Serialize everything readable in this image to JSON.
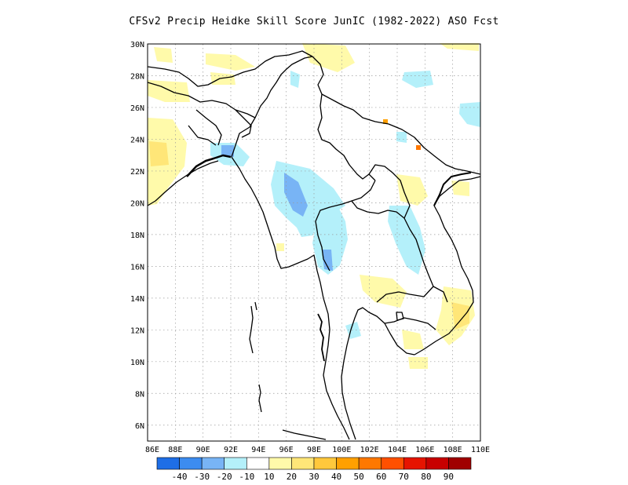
{
  "title": "CFSv2 Precip Heidke Skill Score JunIC (1982-2022) ASO Fcst",
  "map": {
    "lon_range": [
      86,
      110
    ],
    "lat_range": [
      5,
      30
    ],
    "lon_ticks": [
      "86E",
      "88E",
      "90E",
      "92E",
      "94E",
      "96E",
      "98E",
      "100E",
      "102E",
      "104E",
      "106E",
      "108E",
      "110E"
    ],
    "lat_ticks": [
      "6N",
      "8N",
      "10N",
      "12N",
      "14N",
      "16N",
      "18N",
      "20N",
      "22N",
      "24N",
      "26N",
      "28N",
      "30N"
    ],
    "grid": "dotted",
    "region": "Myanmar / Thailand / Indochina"
  },
  "colorbar": {
    "colors": [
      "#1e6ee6",
      "#3c8cf0",
      "#78b4f5",
      "#b4f0fa",
      "#ffffff",
      "#fffaaa",
      "#ffe678",
      "#ffc83c",
      "#ffa000",
      "#ff7800",
      "#ff5000",
      "#e61400",
      "#c80000",
      "#a00000"
    ],
    "labels": [
      "-40",
      "-30",
      "-20",
      "-10",
      "10",
      "20",
      "30",
      "40",
      "50",
      "60",
      "70",
      "80",
      "90"
    ]
  }
}
